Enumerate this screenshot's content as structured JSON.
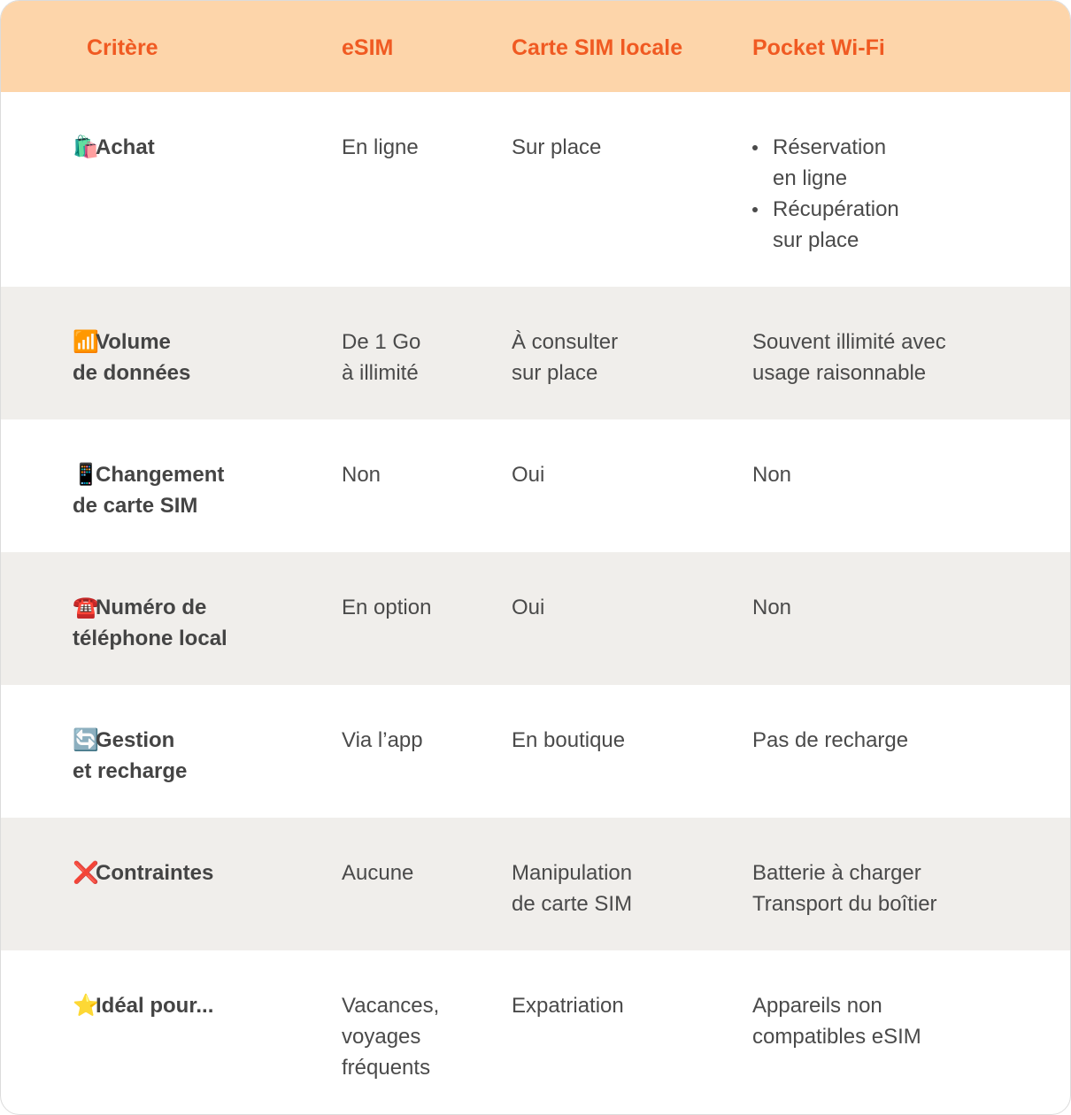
{
  "colors": {
    "header_bg": "#fdd5aa",
    "header_text": "#f05a22",
    "alt_row_bg": "#f0eeeb",
    "text": "#4a4a4a"
  },
  "header": [
    "Critère",
    "eSIM",
    "Carte SIM locale",
    "Pocket Wi-Fi"
  ],
  "rows": [
    {
      "icon": "🛍️",
      "icon_name": "shopping-bags-icon",
      "criterion": "Achat",
      "esim": "En ligne",
      "sim": "Sur place",
      "pocket": [
        "Réservation\nen ligne",
        "Récupération\nsur place"
      ]
    },
    {
      "icon": "📶",
      "icon_name": "signal-bars-icon",
      "criterion": "Volume\nde données",
      "esim": "De 1 Go\nà illimité",
      "sim": "À consulter\nsur place",
      "pocket": "Souvent illimité avec\nusage raisonnable"
    },
    {
      "icon": "📱",
      "icon_name": "mobile-phone-icon",
      "criterion": "Changement\nde carte SIM",
      "esim": "Non",
      "sim": "Oui",
      "pocket": "Non"
    },
    {
      "icon": "☎️",
      "icon_name": "telephone-icon",
      "criterion": "Numéro de\ntéléphone local",
      "esim": "En option",
      "sim": "Oui",
      "pocket": "Non"
    },
    {
      "icon": "🔄",
      "icon_name": "refresh-icon",
      "criterion": "Gestion\net recharge",
      "esim": "Via l’app",
      "sim": "En boutique",
      "pocket": "Pas de recharge"
    },
    {
      "icon": "❌",
      "icon_name": "cross-icon",
      "criterion": "Contraintes",
      "esim": "Aucune",
      "sim": "Manipulation\nde carte SIM",
      "pocket": "Batterie à charger\nTransport du boîtier"
    },
    {
      "icon": "⭐",
      "icon_name": "star-icon",
      "criterion": "Idéal pour...",
      "esim": "Vacances,\nvoyages\nfréquents",
      "sim": "Expatriation",
      "pocket": "Appareils non\ncompatibles eSIM"
    }
  ]
}
